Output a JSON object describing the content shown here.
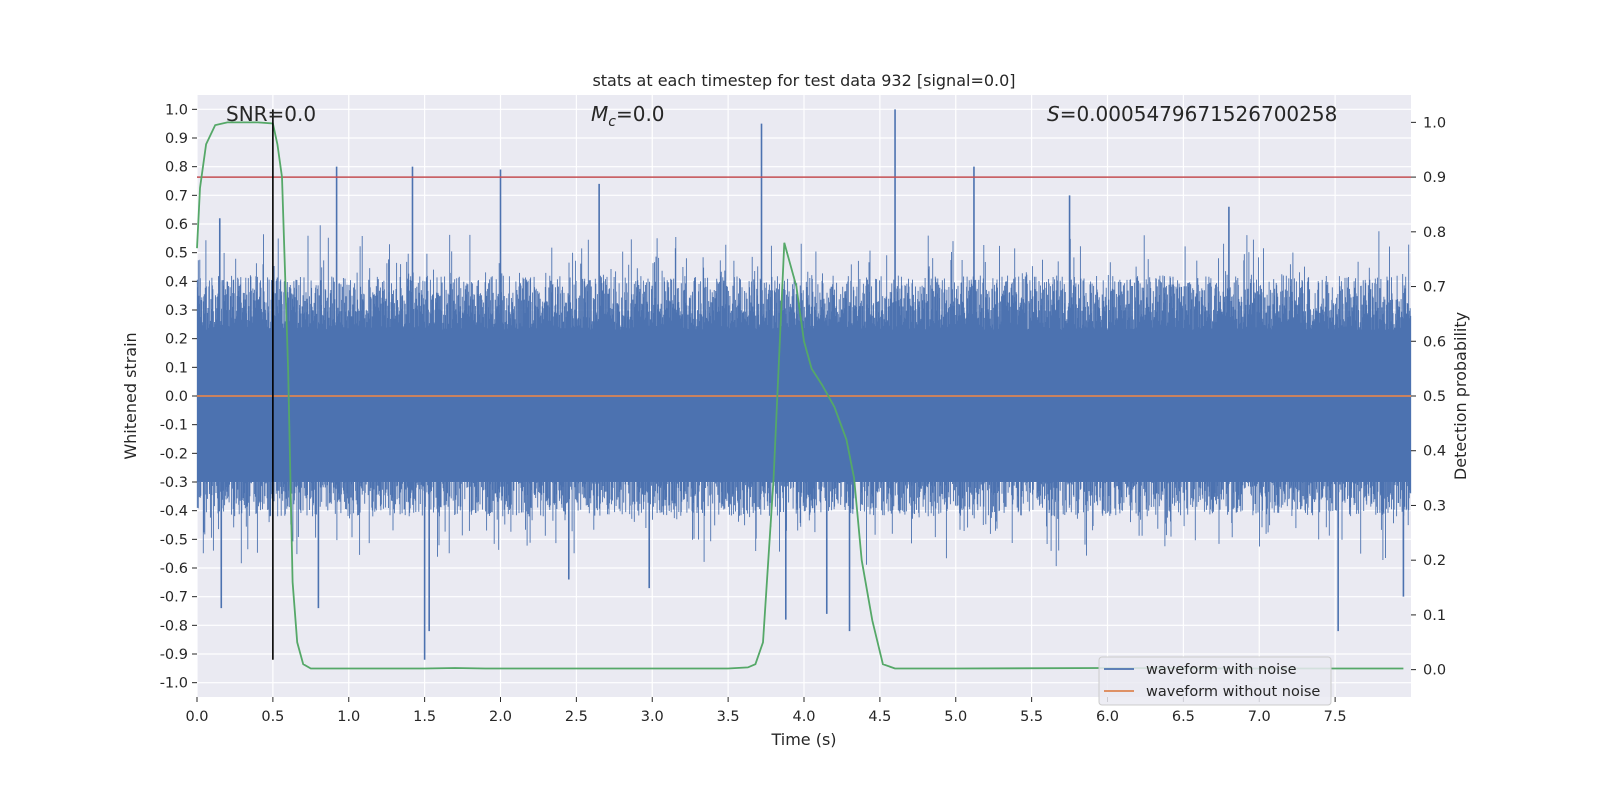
{
  "chart_data": {
    "type": "line",
    "title": "stats at each timestep for test data 932 [signal=0.0]",
    "xlabel": "Time (s)",
    "ylabel": "Whitened strain",
    "ylabel_right": "Detection probability",
    "xlim": [
      0.0,
      8.0
    ],
    "ylim": [
      -1.05,
      1.05
    ],
    "ylim_right": [
      -0.05,
      1.05
    ],
    "x_ticks": [
      "0.0",
      "0.5",
      "1.0",
      "1.5",
      "2.0",
      "2.5",
      "3.0",
      "3.5",
      "4.0",
      "4.5",
      "5.0",
      "5.5",
      "6.0",
      "6.5",
      "7.0",
      "7.5"
    ],
    "y_ticks": [
      "-1.0",
      "-0.9",
      "-0.8",
      "-0.7",
      "-0.6",
      "-0.5",
      "-0.4",
      "-0.3",
      "-0.2",
      "-0.1",
      "0.0",
      "0.1",
      "0.2",
      "0.3",
      "0.4",
      "0.5",
      "0.6",
      "0.7",
      "0.8",
      "0.9",
      "1.0"
    ],
    "y_ticks_right": [
      "0.0",
      "0.1",
      "0.2",
      "0.3",
      "0.4",
      "0.5",
      "0.6",
      "0.7",
      "0.8",
      "0.9",
      "1.0"
    ],
    "grid": true,
    "annotations": {
      "snr": "SNR=0.0",
      "mc_symbol": "M",
      "mc_sub": "c",
      "mc_value": "=0.0",
      "s_symbol": "S",
      "s_value": "=0.0005479671526700258"
    },
    "threshold_line": {
      "y_right": 0.9,
      "color": "#c44e52"
    },
    "marker_line": {
      "x": 0.5,
      "y_from": -0.92,
      "y_to": 1.0,
      "color": "#000000"
    },
    "noise_envelope": {
      "typical_band": [
        -0.42,
        0.42
      ],
      "spikes": [
        {
          "x": 0.15,
          "y": 0.62
        },
        {
          "x": 0.16,
          "y": -0.74
        },
        {
          "x": 0.92,
          "y": 0.8
        },
        {
          "x": 0.8,
          "y": -0.74
        },
        {
          "x": 1.42,
          "y": 0.8
        },
        {
          "x": 1.5,
          "y": -0.92
        },
        {
          "x": 1.53,
          "y": -0.82
        },
        {
          "x": 2.0,
          "y": 0.79
        },
        {
          "x": 2.45,
          "y": -0.64
        },
        {
          "x": 2.65,
          "y": 0.74
        },
        {
          "x": 2.98,
          "y": -0.67
        },
        {
          "x": 3.72,
          "y": 0.95
        },
        {
          "x": 3.88,
          "y": -0.78
        },
        {
          "x": 4.6,
          "y": 1.0
        },
        {
          "x": 4.15,
          "y": -0.76
        },
        {
          "x": 4.3,
          "y": -0.82
        },
        {
          "x": 5.12,
          "y": 0.8
        },
        {
          "x": 5.75,
          "y": 0.7
        },
        {
          "x": 7.52,
          "y": -0.82
        },
        {
          "x": 7.95,
          "y": -0.7
        },
        {
          "x": 6.8,
          "y": 0.66
        }
      ]
    },
    "series": [
      {
        "name": "waveform with noise",
        "color": "#4c72b0",
        "axis": "left"
      },
      {
        "name": "waveform without noise",
        "color": "#dd8452",
        "axis": "left",
        "x": [
          0.0,
          8.0
        ],
        "y": [
          0.0,
          0.0
        ]
      },
      {
        "color": "#55a868",
        "axis": "right",
        "x": [
          0.0,
          0.02,
          0.06,
          0.12,
          0.2,
          0.3,
          0.4,
          0.5,
          0.53,
          0.56,
          0.6,
          0.63,
          0.66,
          0.7,
          0.75,
          0.9,
          1.5,
          1.7,
          1.9,
          2.5,
          3.0,
          3.5,
          3.63,
          3.68,
          3.73,
          3.8,
          3.87,
          3.95,
          4.0,
          4.05,
          4.12,
          4.2,
          4.28,
          4.33,
          4.38,
          4.45,
          4.52,
          4.6,
          5.0,
          6.0,
          7.0,
          7.95
        ],
        "y": [
          0.77,
          0.88,
          0.96,
          0.995,
          1.0,
          1.0,
          1.0,
          0.998,
          0.96,
          0.9,
          0.55,
          0.16,
          0.05,
          0.01,
          0.002,
          0.002,
          0.002,
          0.003,
          0.002,
          0.002,
          0.002,
          0.002,
          0.004,
          0.01,
          0.05,
          0.35,
          0.78,
          0.7,
          0.6,
          0.55,
          0.52,
          0.48,
          0.42,
          0.35,
          0.2,
          0.09,
          0.01,
          0.002,
          0.002,
          0.003,
          0.002,
          0.002
        ]
      }
    ],
    "legend": {
      "placement": "lower-right"
    }
  }
}
